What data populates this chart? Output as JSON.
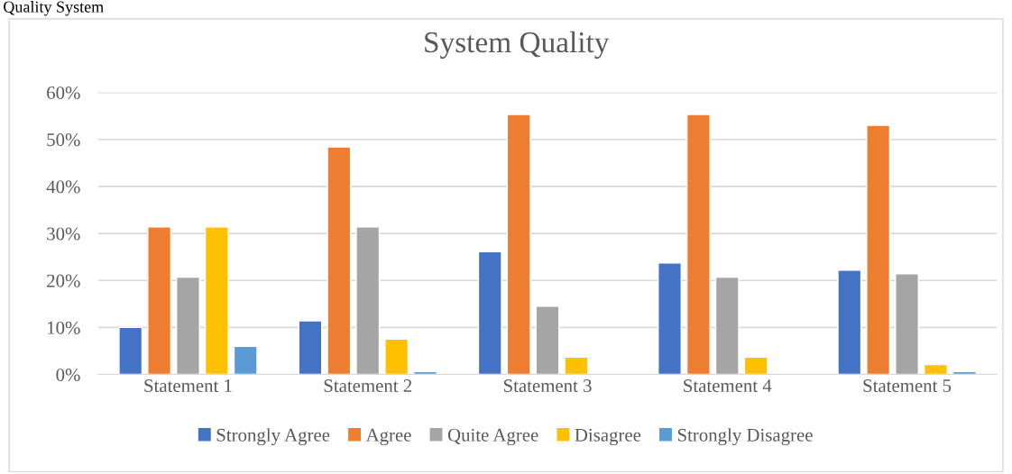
{
  "chart_data": {
    "type": "bar",
    "title": "System Quality",
    "annotations": [
      "Quality System"
    ],
    "categories": [
      "Statement 1",
      "Statement 2",
      "Statement 3",
      "Statement 4",
      "Statement 5"
    ],
    "series": [
      {
        "name": "Strongly Agree",
        "color": "#4472c4",
        "values": [
          10,
          11.4,
          26.1,
          23.7,
          22.2
        ]
      },
      {
        "name": "Agree",
        "color": "#ed7d31",
        "values": [
          31.4,
          48.4,
          55.3,
          55.3,
          53.0
        ]
      },
      {
        "name": "Quite Agree",
        "color": "#a5a5a5",
        "values": [
          20.7,
          31.4,
          14.5,
          20.7,
          21.4
        ]
      },
      {
        "name": "Disagree",
        "color": "#ffc000",
        "values": [
          31.4,
          7.5,
          3.7,
          3.7,
          2.1
        ]
      },
      {
        "name": "Strongly Disagree",
        "color": "#5b9bd5",
        "values": [
          6.0,
          0.6,
          null,
          null,
          0.6
        ]
      }
    ],
    "ylim": [
      0,
      60
    ],
    "yticks": [
      {
        "value": 0,
        "label": "0%"
      },
      {
        "value": 10,
        "label": "10%"
      },
      {
        "value": 20,
        "label": "20%"
      },
      {
        "value": 30,
        "label": "30%"
      },
      {
        "value": 40,
        "label": "40%"
      },
      {
        "value": 50,
        "label": "50%"
      },
      {
        "value": 60,
        "label": "60%"
      }
    ],
    "grid": "y",
    "legend": "bottom"
  }
}
